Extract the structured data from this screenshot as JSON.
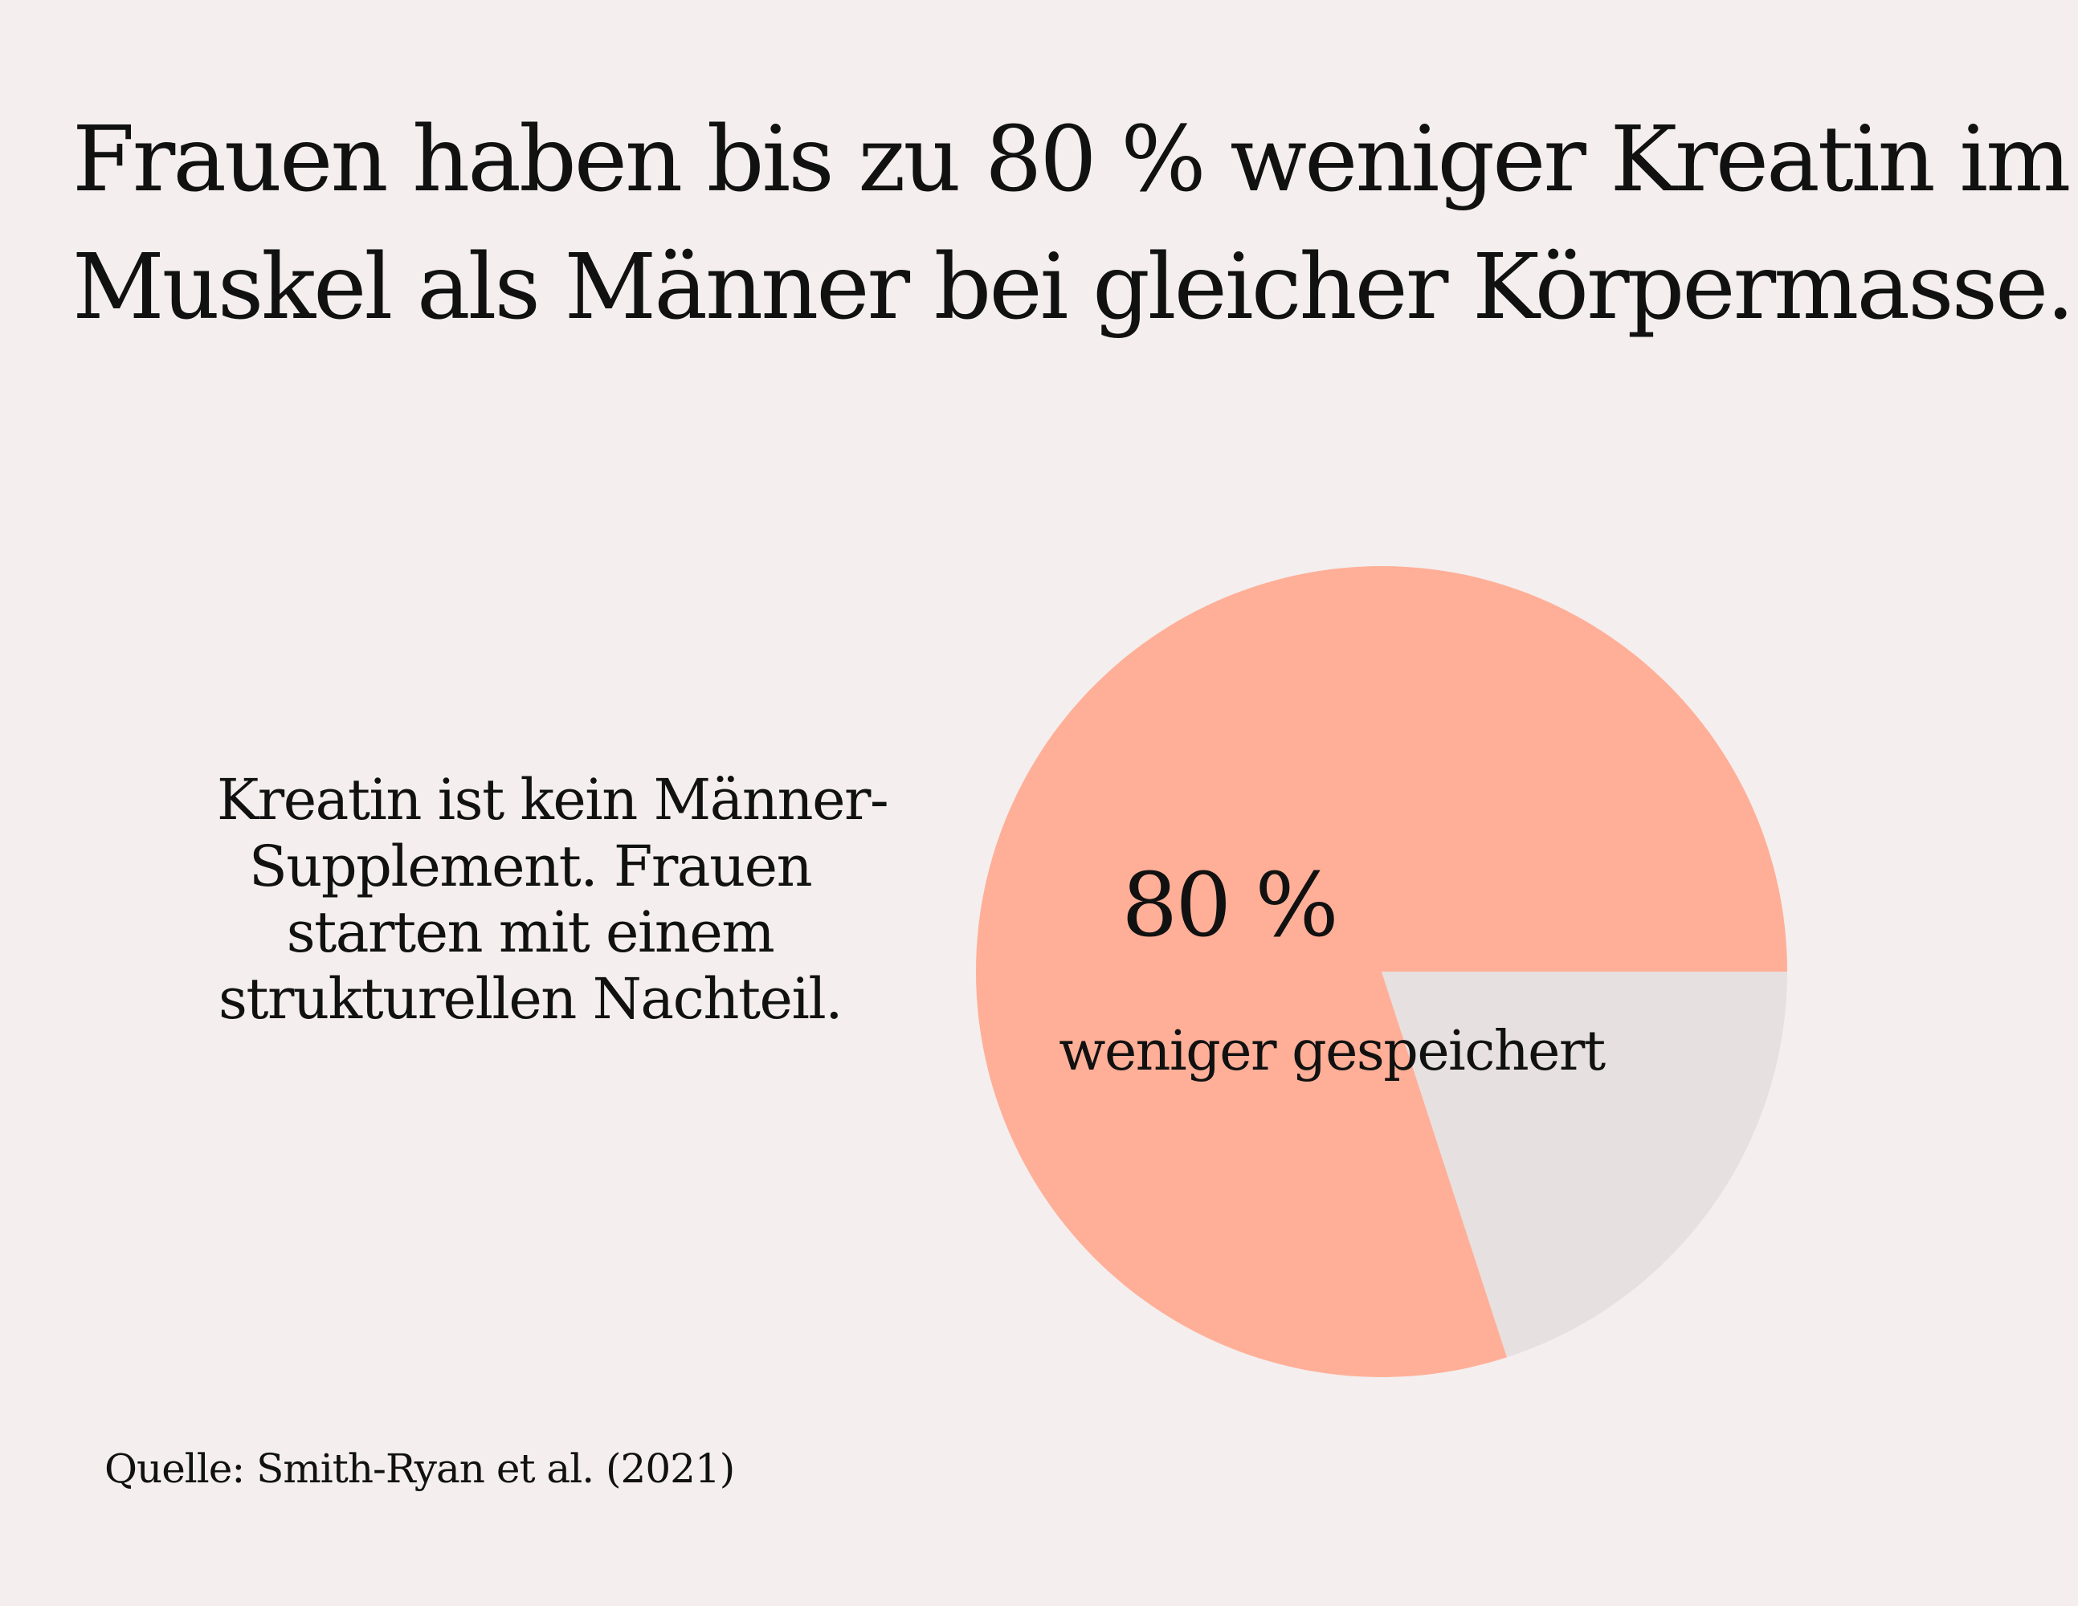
{
  "headline": {
    "line1": "Frauen haben bis zu  80 % weniger Kreatin im",
    "line2": "Muskel als Männer bei gleicher Körpermasse."
  },
  "side_text": {
    "lines": [
      "Kreatin ist kein Männer-",
      "Supplement. Frauen",
      "starten mit einem",
      "strukturellen Nachteil."
    ]
  },
  "chart_data": {
    "type": "pie",
    "slices": [
      {
        "value": 80,
        "color": "#ffaf97"
      },
      {
        "value": 20,
        "color": "#e6e0e0"
      }
    ],
    "highlight_value": "80 %",
    "highlight_caption": "weniger gespeichert"
  },
  "source": "Quelle: Smith-Ryan et al. (2021)"
}
